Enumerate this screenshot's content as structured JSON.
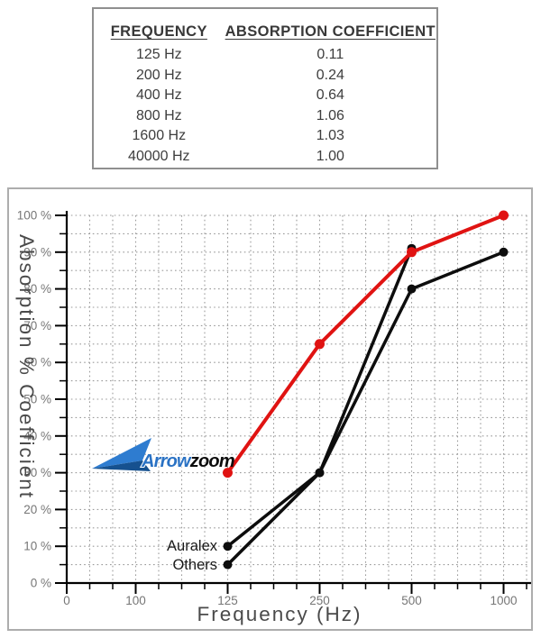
{
  "table": {
    "headers": [
      "FREQUENCY",
      "ABSORPTION COEFFICIENT"
    ],
    "rows": [
      [
        "125 Hz",
        "0.11"
      ],
      [
        "200 Hz",
        "0.24"
      ],
      [
        "400 Hz",
        "0.64"
      ],
      [
        "800 Hz",
        "1.06"
      ],
      [
        "1600 Hz",
        "1.03"
      ],
      [
        "40000 Hz",
        "1.00"
      ]
    ]
  },
  "logo": {
    "text_blue": "Arrow",
    "text_black": "zoom"
  },
  "chart_data": {
    "type": "line",
    "xlabel": "Frequency (Hz)",
    "ylabel": "Absorption % Coefficient",
    "x_tick_labels": [
      "0",
      "100",
      "125",
      "250",
      "500",
      "1000"
    ],
    "y_tick_labels": [
      "0 %",
      "10 %",
      "20 %",
      "30 %",
      "40 %",
      "50 %",
      "60 %",
      "70 %",
      "80 %",
      "90 %",
      "100 %"
    ],
    "ylim": [
      0,
      100
    ],
    "grid": "dotted; horizontal every 5%, vertical at every minor tick",
    "legend_position": "inline point labels",
    "series": [
      {
        "name": "Arrowzoom",
        "color": "#e01312",
        "x": [
          125,
          250,
          500,
          1000
        ],
        "values": [
          30,
          65,
          90,
          100
        ]
      },
      {
        "name": "Auralex",
        "color": "#0d0d0d",
        "x": [
          125,
          250,
          500
        ],
        "values": [
          10,
          30,
          91
        ]
      },
      {
        "name": "Others",
        "color": "#0d0d0d",
        "x": [
          125,
          250,
          500,
          1000
        ],
        "values": [
          5,
          30,
          80,
          90
        ]
      }
    ]
  },
  "colors": {
    "accent_red": "#e01312",
    "line_black": "#0d0d0d",
    "grid_gray": "#9a9a9a",
    "tick_label_gray": "#767676",
    "logo_blue_light": "#2e7cd0",
    "logo_blue_dark": "#16518f",
    "logo_text_blue": "#2a72c4"
  }
}
